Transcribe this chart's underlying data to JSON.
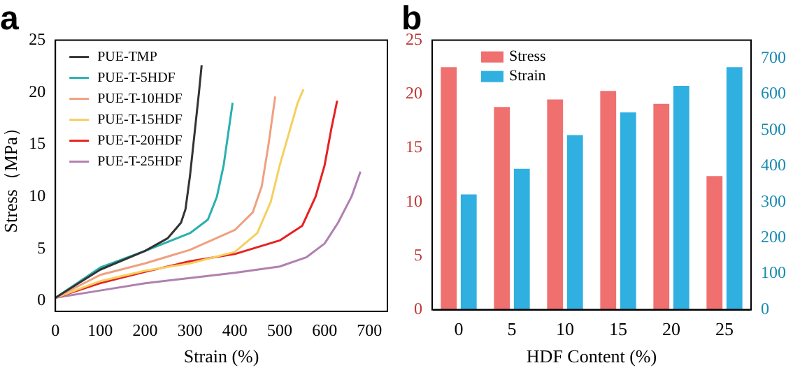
{
  "chart_data": [
    {
      "type": "line",
      "title": "a",
      "xlabel": "Strain (%)",
      "ylabel": "Stress（MPa）",
      "xlim": [
        0,
        740
      ],
      "xticks": [
        0,
        100,
        200,
        300,
        400,
        500,
        600,
        700
      ],
      "ylim": [
        -1,
        25
      ],
      "yticks": [
        0,
        5,
        10,
        15,
        20,
        25
      ],
      "legend": "top left",
      "marker": "none",
      "grid": false,
      "series": [
        {
          "name": "PUE-TMP",
          "color": "#333333",
          "x": [
            0,
            100,
            200,
            250,
            280,
            290,
            300,
            310,
            320,
            326
          ],
          "values": [
            0.3,
            3.0,
            4.8,
            6.0,
            7.5,
            8.8,
            12,
            16,
            20,
            22.6
          ]
        },
        {
          "name": "PUE-T-5HDF",
          "color": "#2ab0b0",
          "x": [
            0,
            100,
            200,
            300,
            340,
            360,
            375,
            385,
            395
          ],
          "values": [
            0.3,
            3.2,
            4.8,
            6.5,
            7.8,
            10,
            13,
            16,
            19
          ]
        },
        {
          "name": "PUE-T-10HDF",
          "color": "#f0a080",
          "x": [
            0,
            100,
            200,
            300,
            400,
            440,
            460,
            475,
            490
          ],
          "values": [
            0.3,
            2.5,
            3.6,
            4.9,
            6.8,
            8.5,
            11,
            15,
            19.6
          ]
        },
        {
          "name": "PUE-T-15HDF",
          "color": "#f5d060",
          "x": [
            0,
            100,
            200,
            300,
            400,
            450,
            480,
            500,
            520,
            540,
            553
          ],
          "values": [
            0.3,
            1.9,
            2.9,
            3.6,
            4.7,
            6.5,
            9.5,
            13,
            16,
            19,
            20.3
          ]
        },
        {
          "name": "PUE-T-20HDF",
          "color": "#e82020",
          "x": [
            0,
            100,
            200,
            300,
            400,
            500,
            550,
            580,
            600,
            615,
            628
          ],
          "values": [
            0.3,
            1.7,
            2.8,
            3.8,
            4.5,
            5.8,
            7.2,
            10,
            13,
            16.5,
            19.2
          ]
        },
        {
          "name": "PUE-T-25HDF",
          "color": "#b080b0",
          "x": [
            0,
            100,
            200,
            300,
            400,
            500,
            560,
            600,
            630,
            660,
            680
          ],
          "values": [
            0.3,
            1.0,
            1.7,
            2.2,
            2.7,
            3.3,
            4.2,
            5.5,
            7.5,
            10,
            12.4
          ]
        }
      ]
    },
    {
      "type": "bar",
      "title": "b",
      "xlabel": "HDF Content (%)",
      "categories": [
        "0",
        "5",
        "10",
        "15",
        "20",
        "25"
      ],
      "ylim": [
        0,
        25
      ],
      "yticks": [
        0,
        5,
        10,
        15,
        20,
        25
      ],
      "y2lim": [
        0,
        750
      ],
      "y2ticks": [
        0,
        100,
        200,
        300,
        400,
        500,
        600,
        700
      ],
      "legend": "top left",
      "grid": false,
      "series": [
        {
          "name": "Stress",
          "color": "#f07070",
          "values": [
            22.5,
            18.8,
            19.5,
            20.3,
            19.1,
            12.4
          ]
        },
        {
          "name": "Strain",
          "color": "#30b0e0",
          "axis": "y2",
          "values": [
            321,
            392,
            486,
            549,
            623,
            675
          ]
        }
      ]
    }
  ]
}
